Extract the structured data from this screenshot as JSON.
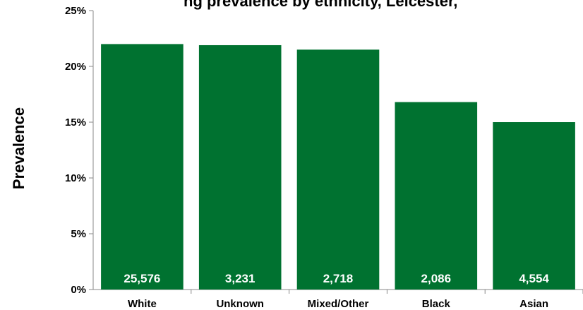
{
  "chart_data": {
    "type": "bar",
    "title": "ng prevalence by ethnicity, Leicester,",
    "xlabel": "",
    "ylabel": "Prevalence",
    "ylim": [
      0,
      25
    ],
    "yticks": [
      "0%",
      "5%",
      "10%",
      "15%",
      "20%",
      "25%"
    ],
    "categories": [
      "White",
      "Unknown",
      "Mixed/Other",
      "Black",
      "Asian"
    ],
    "values": [
      22.0,
      21.9,
      21.5,
      16.8,
      15.0
    ],
    "bar_labels": [
      "25,576",
      "3,231",
      "2,718",
      "2,086",
      "4,554"
    ],
    "bar_color": "#007230",
    "grid": false,
    "legend": "none"
  }
}
